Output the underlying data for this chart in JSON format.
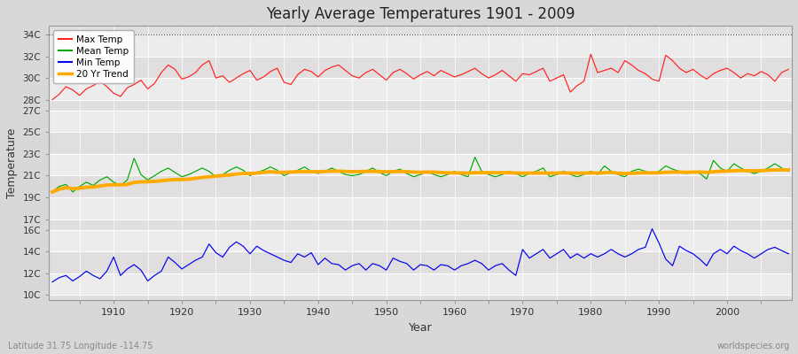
{
  "title": "Yearly Average Temperatures 1901 - 2009",
  "xlabel": "Year",
  "ylabel": "Temperature",
  "lat_lon_label": "Latitude 31.75 Longitude -114.75",
  "watermark": "worldspecies.org",
  "years_start": 1901,
  "years_end": 2009,
  "ytick_vals": [
    10,
    12,
    14,
    16,
    17,
    19,
    21,
    23,
    25,
    27,
    28,
    30,
    32,
    34
  ],
  "ytick_labels": [
    "10C",
    "12C",
    "14C",
    "16C",
    "17C",
    "19C",
    "21C",
    "23C",
    "25C",
    "27C",
    "28C",
    "30C",
    "32C",
    "34C"
  ],
  "ylim": [
    9.5,
    34.8
  ],
  "xlim": [
    1900.5,
    2009.5
  ],
  "fig_bg": "#d8d8d8",
  "plot_bg": "#e0dede",
  "grid_color": "#ffffff",
  "max_temp_color": "#ff2020",
  "mean_temp_color": "#00aa00",
  "min_temp_color": "#0000ee",
  "trend_color": "#ffaa00",
  "legend_labels": [
    "Max Temp",
    "Mean Temp",
    "Min Temp",
    "20 Yr Trend"
  ],
  "legend_colors": [
    "#ff2020",
    "#00aa00",
    "#0000ee",
    "#ffaa00"
  ],
  "max_temps": [
    28.0,
    28.5,
    29.2,
    28.9,
    28.4,
    29.0,
    29.3,
    29.7,
    29.2,
    28.6,
    28.3,
    29.1,
    29.4,
    29.8,
    29.0,
    29.5,
    30.5,
    31.2,
    30.8,
    29.9,
    30.1,
    30.5,
    31.2,
    31.6,
    30.0,
    30.2,
    29.6,
    30.0,
    30.4,
    30.7,
    29.8,
    30.1,
    30.6,
    30.9,
    29.6,
    29.4,
    30.3,
    30.8,
    30.6,
    30.1,
    30.7,
    31.0,
    31.2,
    30.7,
    30.2,
    30.0,
    30.5,
    30.8,
    30.3,
    29.8,
    30.5,
    30.8,
    30.4,
    29.9,
    30.3,
    30.6,
    30.2,
    30.7,
    30.4,
    30.1,
    30.3,
    30.6,
    30.9,
    30.4,
    30.0,
    30.3,
    30.7,
    30.2,
    29.7,
    30.4,
    30.3,
    30.6,
    30.9,
    29.7,
    30.0,
    30.3,
    28.7,
    29.3,
    29.7,
    32.2,
    30.5,
    30.7,
    30.9,
    30.5,
    31.6,
    31.2,
    30.7,
    30.4,
    29.9,
    29.7,
    32.1,
    31.6,
    30.9,
    30.5,
    30.8,
    30.3,
    29.9,
    30.4,
    30.7,
    30.9,
    30.5,
    30.0,
    30.4,
    30.2,
    30.6,
    30.3,
    29.7,
    30.5,
    30.8
  ],
  "mean_temps": [
    19.5,
    20.0,
    20.2,
    19.5,
    20.0,
    20.4,
    20.1,
    20.6,
    20.9,
    20.4,
    20.1,
    20.6,
    22.6,
    21.1,
    20.6,
    21.0,
    21.4,
    21.7,
    21.3,
    20.9,
    21.1,
    21.4,
    21.7,
    21.4,
    20.9,
    21.1,
    21.5,
    21.8,
    21.5,
    21.0,
    21.3,
    21.5,
    21.8,
    21.5,
    21.0,
    21.3,
    21.5,
    21.8,
    21.4,
    21.2,
    21.4,
    21.7,
    21.4,
    21.1,
    21.0,
    21.1,
    21.4,
    21.7,
    21.3,
    21.0,
    21.4,
    21.6,
    21.2,
    20.9,
    21.1,
    21.4,
    21.1,
    20.9,
    21.1,
    21.4,
    21.1,
    20.9,
    22.7,
    21.4,
    21.1,
    20.9,
    21.1,
    21.4,
    21.2,
    20.9,
    21.2,
    21.4,
    21.7,
    20.9,
    21.1,
    21.4,
    21.1,
    20.9,
    21.1,
    21.4,
    21.1,
    21.9,
    21.4,
    21.1,
    20.9,
    21.4,
    21.6,
    21.4,
    21.2,
    21.4,
    21.9,
    21.6,
    21.4,
    21.2,
    21.4,
    21.2,
    20.7,
    22.4,
    21.7,
    21.4,
    22.1,
    21.7,
    21.4,
    21.2,
    21.4,
    21.7,
    22.1,
    21.7,
    21.4
  ],
  "min_temps": [
    11.2,
    11.6,
    11.8,
    11.3,
    11.7,
    12.2,
    11.8,
    11.5,
    12.2,
    13.5,
    11.8,
    12.4,
    12.8,
    12.3,
    11.3,
    11.8,
    12.2,
    13.5,
    13.0,
    12.4,
    12.8,
    13.2,
    13.5,
    14.7,
    13.9,
    13.5,
    14.4,
    14.9,
    14.5,
    13.8,
    14.5,
    14.1,
    13.8,
    13.5,
    13.2,
    13.0,
    13.8,
    13.5,
    13.9,
    12.8,
    13.4,
    12.9,
    12.8,
    12.3,
    12.7,
    12.9,
    12.3,
    12.9,
    12.7,
    12.3,
    13.4,
    13.1,
    12.9,
    12.3,
    12.8,
    12.7,
    12.3,
    12.8,
    12.7,
    12.3,
    12.7,
    12.9,
    13.2,
    12.9,
    12.3,
    12.7,
    12.9,
    12.3,
    11.8,
    14.2,
    13.4,
    13.8,
    14.2,
    13.4,
    13.8,
    14.2,
    13.4,
    13.8,
    13.4,
    13.8,
    13.5,
    13.8,
    14.2,
    13.8,
    13.5,
    13.8,
    14.2,
    14.4,
    16.1,
    14.8,
    13.3,
    12.7,
    14.5,
    14.1,
    13.8,
    13.3,
    12.7,
    13.8,
    14.2,
    13.8,
    14.5,
    14.1,
    13.8,
    13.4,
    13.8,
    14.2,
    14.4,
    14.1,
    13.8
  ]
}
